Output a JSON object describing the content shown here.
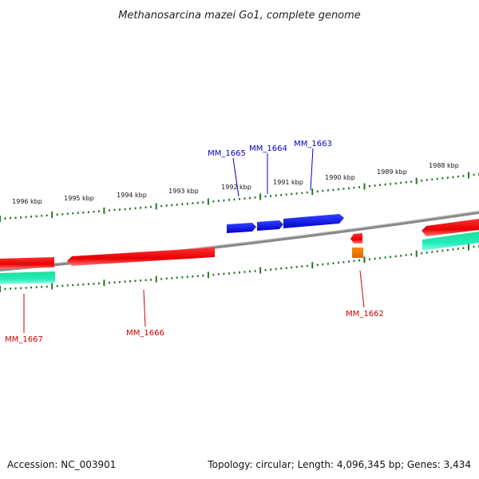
{
  "title": "Methanosarcina mazei Go1, complete genome",
  "footer": {
    "accession": "Accession: NC_003901",
    "summary": "Topology: circular; Length: 4,096,345 bp; Genes: 3,434"
  },
  "ruler": {
    "ticks": [
      "1996 kbp",
      "1995 kbp",
      "1994 kbp",
      "1993 kbp",
      "1992 kbp",
      "1991 kbp",
      "1990 kbp",
      "1989 kbp",
      "1988 kbp"
    ]
  },
  "genes": {
    "forward": [
      {
        "label": "MM_1665",
        "strand": "+",
        "color": "#0000ee"
      },
      {
        "label": "MM_1664",
        "strand": "+",
        "color": "#0000ee"
      },
      {
        "label": "MM_1663",
        "strand": "+",
        "color": "#0000ee"
      }
    ],
    "reverse": [
      {
        "label": "MM_1667",
        "strand": "-",
        "color": "#ee0000"
      },
      {
        "label": "MM_1666",
        "strand": "-",
        "color": "#ee0000"
      },
      {
        "label": "MM_1662",
        "strand": "-",
        "color": "#ee0000"
      }
    ]
  },
  "colors": {
    "forward_gene": "#0000ee",
    "reverse_gene": "#ee0000",
    "rna_feature": "#ee7700",
    "cds_track": "#22ddaa",
    "ruler": "#227722",
    "backbone": "#888888"
  }
}
